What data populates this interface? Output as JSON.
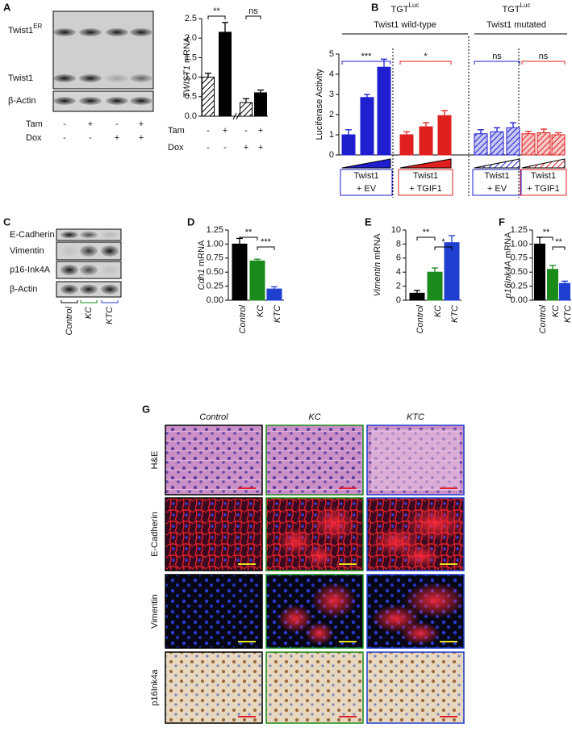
{
  "panel_labels": [
    "A",
    "B",
    "C",
    "D",
    "E",
    "F",
    "G"
  ],
  "blot_a": {
    "rows": [
      {
        "text": "Twist1",
        "sup": "ER"
      },
      {
        "text": "Twist1"
      },
      {
        "text": "β-Actin"
      }
    ],
    "treatments": [
      {
        "name": "Tam",
        "marks": [
          "-",
          "+",
          "-",
          "+"
        ]
      },
      {
        "name": "Dox",
        "marks": [
          "-",
          "-",
          "+",
          "+"
        ]
      }
    ]
  },
  "blot_c": {
    "rows": [
      "E-Cadherin",
      "Vimentin",
      "p16-Ink4A",
      "β-Actin"
    ],
    "lanes": [
      "Control",
      "KC",
      "KTC"
    ],
    "lane_colors": [
      "#000000",
      "#1a8a1a",
      "#1f3fd0"
    ]
  },
  "histology": {
    "columns": [
      "Control",
      "KC",
      "KTC"
    ],
    "column_colors": [
      "#000000",
      "#1a8a1a",
      "#1f3fd0"
    ],
    "rows": [
      "H&E",
      "E-Cadherin",
      "Vimentin",
      "p16Ink4a"
    ]
  },
  "chart_data": [
    {
      "type": "bar",
      "y_label": {
        "gene": "TWIST1",
        "suffix": "mRNA"
      },
      "categories": [
        null,
        null,
        null,
        null
      ],
      "values": [
        1.0,
        2.15,
        0.35,
        0.6
      ],
      "errors": [
        0.1,
        0.25,
        0.1,
        0.07
      ],
      "colors": [
        "#000000",
        "#000000",
        "#000000",
        "#000000"
      ],
      "hatched": [
        true,
        false,
        true,
        false
      ],
      "ylim": [
        0,
        2.5
      ],
      "yticks": [
        {
          "value": 0,
          "label": "0.0"
        },
        0.5,
        {
          "value": 1,
          "label": "1.0"
        },
        1.5,
        {
          "value": 2,
          "label": "2.0"
        },
        2.5
      ],
      "significance": [
        "**",
        "ns"
      ],
      "treatments": [
        {
          "name": "Tam",
          "marks": [
            "-",
            "+",
            "-",
            "+"
          ]
        },
        {
          "name": "Dox",
          "marks": [
            "-",
            "-",
            "+",
            "+"
          ]
        }
      ]
    },
    {
      "type": "bar",
      "y_label": "Luciferase Activity",
      "categories": [
        null,
        null,
        null,
        null,
        null,
        null,
        null,
        null,
        null,
        null,
        null,
        null
      ],
      "values": [
        1.0,
        2.85,
        4.35,
        1.0,
        1.4,
        1.95,
        1.05,
        1.15,
        1.35,
        1.05,
        1.1,
        1.0
      ],
      "errors": [
        0.25,
        0.15,
        0.4,
        0.15,
        0.2,
        0.25,
        0.2,
        0.2,
        0.25,
        0.12,
        0.18,
        0.1
      ],
      "colors": [
        "#1f1fd0",
        "#1f1fd0",
        "#1f1fd0",
        "#e01f1f",
        "#e01f1f",
        "#e01f1f",
        "#1f1fd0",
        "#1f1fd0",
        "#1f1fd0",
        "#e01f1f",
        "#e01f1f",
        "#e01f1f"
      ],
      "hatched": [
        false,
        false,
        false,
        false,
        false,
        false,
        true,
        true,
        true,
        true,
        true,
        true
      ],
      "ylim": [
        0,
        5
      ],
      "yticks": [
        0,
        1,
        2,
        3,
        4,
        5
      ],
      "headers": [
        {
          "title": "TGT",
          "sup": "Luc",
          "subtitle": "Twist1 wild-type"
        },
        {
          "title": "TGT",
          "sup": "Luc",
          "subtitle": "Twist1 mutated"
        }
      ],
      "significance": [
        "***",
        "*",
        "ns",
        "ns"
      ],
      "group_labels": [
        [
          "Twist1",
          "+ EV"
        ],
        [
          "Twist1",
          "+ TGIF1"
        ],
        [
          "Twist1",
          "+ EV"
        ],
        [
          "Twist1",
          "+ TGIF1"
        ]
      ],
      "group_colors": [
        "#1f1fd0",
        "#e01f1f",
        "#1f1fd0",
        "#e01f1f"
      ]
    },
    {
      "type": "bar",
      "y_label": {
        "gene": "Cdh1",
        "suffix": "mRNA"
      },
      "categories": [
        "Control",
        "KC",
        "KTC"
      ],
      "values": [
        1.0,
        0.7,
        0.2
      ],
      "errors": [
        0.1,
        0.03,
        0.04
      ],
      "colors": [
        "#000000",
        "#1a8a1a",
        "#1f3fd0"
      ],
      "hatched": [
        false,
        false,
        false
      ],
      "ylim": [
        0,
        1.25
      ],
      "yticks": [
        {
          "value": 0,
          "label": "0.00"
        },
        0.25,
        {
          "value": 0.5,
          "label": "0.50"
        },
        0.75,
        {
          "value": 1,
          "label": "1.00"
        },
        1.25
      ],
      "significance": [
        "**",
        "***"
      ]
    },
    {
      "type": "bar",
      "y_label": {
        "gene": "Vimentin",
        "suffix": "mRNA"
      },
      "categories": [
        "Control",
        "KC",
        "KTC"
      ],
      "values": [
        1.0,
        4.0,
        8.2
      ],
      "errors": [
        0.4,
        0.6,
        1.0
      ],
      "colors": [
        "#000000",
        "#1a8a1a",
        "#1f3fd0"
      ],
      "hatched": [
        false,
        false,
        false
      ],
      "ylim": [
        0,
        10
      ],
      "yticks": [
        0,
        2,
        4,
        6,
        8,
        10
      ],
      "significance": [
        "**",
        "*"
      ]
    },
    {
      "type": "bar",
      "y_label": {
        "gene": "p16Ink4A",
        "suffix": "mRNA"
      },
      "categories": [
        "Control",
        "KC",
        "KTC"
      ],
      "values": [
        1.0,
        0.55,
        0.3
      ],
      "errors": [
        0.12,
        0.07,
        0.04
      ],
      "colors": [
        "#000000",
        "#1a8a1a",
        "#1f3fd0"
      ],
      "hatched": [
        false,
        false,
        false
      ],
      "ylim": [
        0,
        1.25
      ],
      "yticks": [
        {
          "value": 0,
          "label": "0.00"
        },
        0.25,
        {
          "value": 0.5,
          "label": "0.50"
        },
        0.75,
        {
          "value": 1,
          "label": "1.00"
        },
        1.25
      ],
      "significance": [
        "**",
        "**"
      ]
    }
  ]
}
